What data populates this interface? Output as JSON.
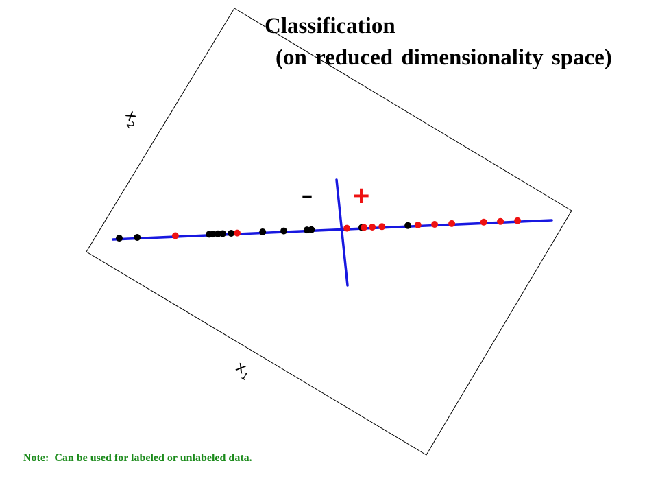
{
  "title": {
    "line1": "Classification",
    "line2": "(on reduced dimensionality space)"
  },
  "axes": {
    "x1_label": "x",
    "x1_subscript": "1",
    "x2_label": "x",
    "x2_subscript": "2"
  },
  "regions": {
    "negative_label": "–",
    "positive_label": "+"
  },
  "note": "Note:  Can be used for labeled or unlabeled data.",
  "colors": {
    "frame": "#000000",
    "projection_line": "#1818e0",
    "boundary_line": "#1818e0",
    "class_negative": "#000000",
    "class_positive": "#ee1111",
    "positive_label": "#ee1111",
    "negative_label": "#000000",
    "note": "#1a8a1a"
  },
  "points": [
    {
      "t": 0.014,
      "class": "negative"
    },
    {
      "t": 0.055,
      "class": "negative"
    },
    {
      "t": 0.142,
      "class": "positive"
    },
    {
      "t": 0.219,
      "class": "negative"
    },
    {
      "t": 0.228,
      "class": "negative"
    },
    {
      "t": 0.239,
      "class": "negative"
    },
    {
      "t": 0.25,
      "class": "negative"
    },
    {
      "t": 0.269,
      "class": "negative"
    },
    {
      "t": 0.283,
      "class": "positive"
    },
    {
      "t": 0.341,
      "class": "negative"
    },
    {
      "t": 0.389,
      "class": "negative"
    },
    {
      "t": 0.442,
      "class": "negative"
    },
    {
      "t": 0.452,
      "class": "negative"
    },
    {
      "t": 0.533,
      "class": "positive"
    },
    {
      "t": 0.567,
      "class": "negative"
    },
    {
      "t": 0.572,
      "class": "positive"
    },
    {
      "t": 0.591,
      "class": "positive"
    },
    {
      "t": 0.613,
      "class": "positive"
    },
    {
      "t": 0.672,
      "class": "negative"
    },
    {
      "t": 0.695,
      "class": "positive"
    },
    {
      "t": 0.733,
      "class": "positive"
    },
    {
      "t": 0.772,
      "class": "positive"
    },
    {
      "t": 0.845,
      "class": "positive"
    },
    {
      "t": 0.883,
      "class": "positive"
    },
    {
      "t": 0.922,
      "class": "positive"
    }
  ]
}
